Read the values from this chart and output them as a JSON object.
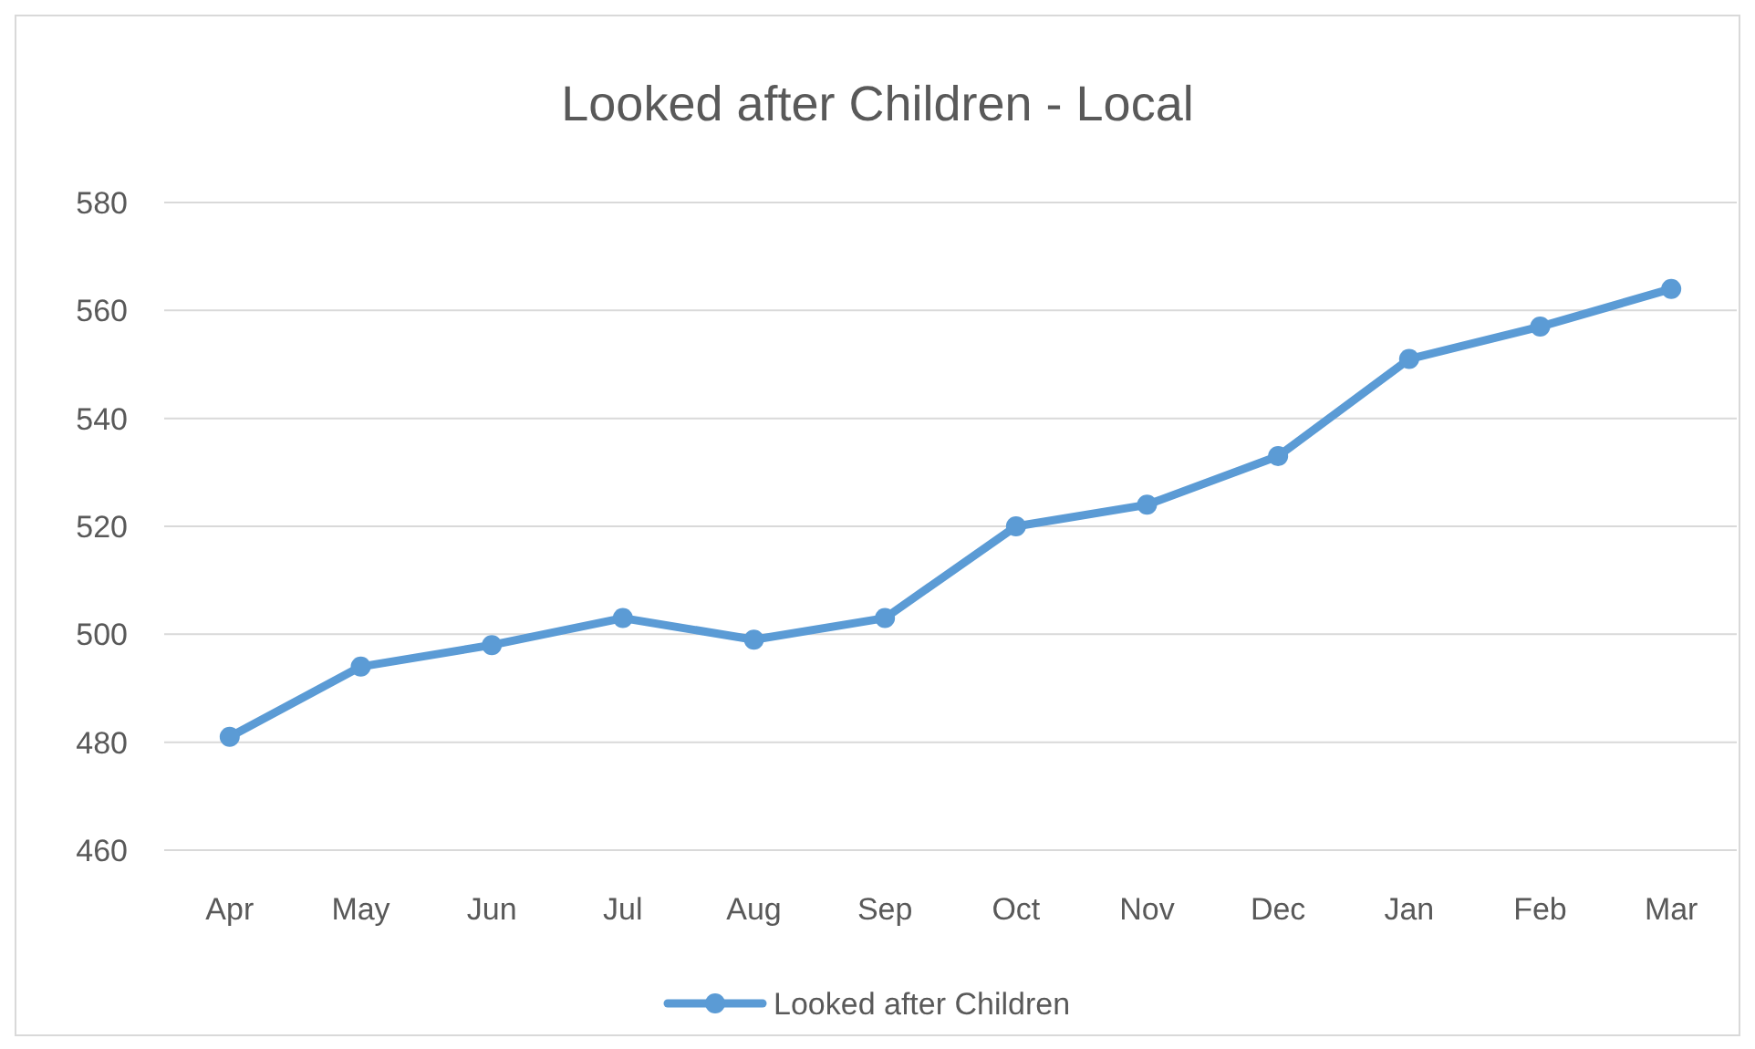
{
  "chart_data": {
    "type": "line",
    "title": "Looked after Children - Local",
    "categories": [
      "Apr",
      "May",
      "Jun",
      "Jul",
      "Aug",
      "Sep",
      "Oct",
      "Nov",
      "Dec",
      "Jan",
      "Feb",
      "Mar"
    ],
    "series": [
      {
        "name": "Looked after Children",
        "color": "#5b9bd5",
        "values": [
          481,
          494,
          498,
          503,
          499,
          503,
          520,
          524,
          533,
          551,
          557,
          564
        ]
      }
    ],
    "ylim": [
      460,
      580
    ],
    "yticks": [
      460,
      480,
      500,
      520,
      540,
      560,
      580
    ],
    "grid": "y",
    "legend": "bottom",
    "marker": "circle",
    "line_style": "solid"
  }
}
